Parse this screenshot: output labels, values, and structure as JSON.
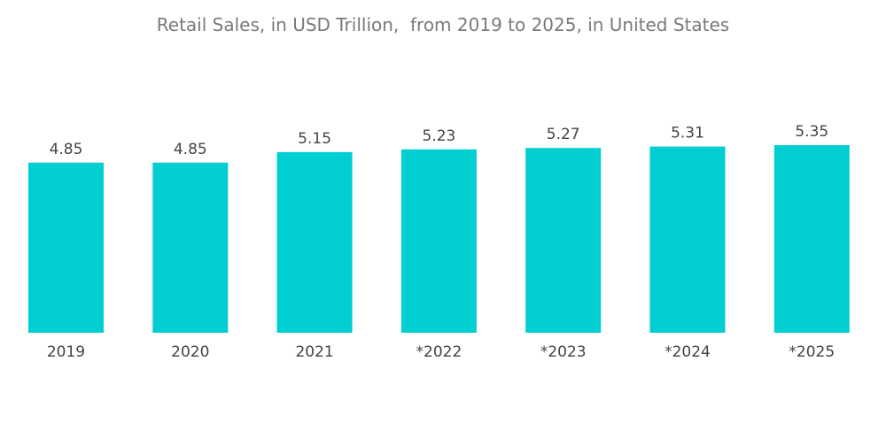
{
  "chart_data": {
    "type": "bar",
    "title": "Retail Sales, in USD Trillion,  from 2019 to 2025, in United States",
    "xlabel": "",
    "ylabel": "",
    "categories": [
      "2019",
      "2020",
      "2021",
      "*2022",
      "*2023",
      "*2024",
      "*2025"
    ],
    "values": [
      4.85,
      4.85,
      5.15,
      5.23,
      5.27,
      5.31,
      5.35
    ],
    "value_labels": [
      "4.85",
      "4.85",
      "5.15",
      "5.23",
      "5.27",
      "5.31",
      "5.35"
    ],
    "ylim": [
      0,
      5.35
    ],
    "grid": false,
    "legend": "none",
    "bar_color": "#00CED1"
  }
}
